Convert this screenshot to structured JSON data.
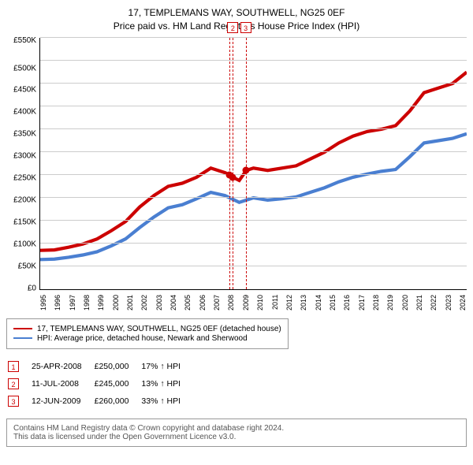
{
  "title": {
    "address": "17, TEMPLEMANS WAY, SOUTHWELL, NG25 0EF",
    "subtitle": "Price paid vs. HM Land Registry's House Price Index (HPI)"
  },
  "chart": {
    "type": "line",
    "background_color": "#ffffff",
    "grid_color": "#cccccc",
    "axis_color": "#000000",
    "ylim": [
      0,
      550
    ],
    "ytick_step": 50,
    "yunit_prefix": "£",
    "yunit_suffix": "K",
    "yticks": [
      "£0",
      "£50K",
      "£100K",
      "£150K",
      "£200K",
      "£250K",
      "£300K",
      "£350K",
      "£400K",
      "£450K",
      "£500K",
      "£550K"
    ],
    "xlim": [
      1995,
      2025
    ],
    "xticks": [
      "1995",
      "1996",
      "1997",
      "1998",
      "1999",
      "2000",
      "2001",
      "2002",
      "2003",
      "2004",
      "2005",
      "2006",
      "2007",
      "2008",
      "2009",
      "2010",
      "2011",
      "2012",
      "2013",
      "2014",
      "2015",
      "2016",
      "2017",
      "2018",
      "2019",
      "2020",
      "2021",
      "2022",
      "2023",
      "2024"
    ],
    "line_width": 1.4,
    "series": [
      {
        "name": "subject",
        "label": "17, TEMPLEMANS WAY, SOUTHWELL, NG25 0EF (detached house)",
        "color": "#cc0000",
        "points": [
          [
            1995,
            85
          ],
          [
            1996,
            86
          ],
          [
            1997,
            92
          ],
          [
            1998,
            99
          ],
          [
            1999,
            110
          ],
          [
            2000,
            128
          ],
          [
            2001,
            148
          ],
          [
            2002,
            180
          ],
          [
            2003,
            205
          ],
          [
            2004,
            225
          ],
          [
            2005,
            232
          ],
          [
            2006,
            245
          ],
          [
            2007,
            265
          ],
          [
            2008,
            255
          ],
          [
            2008.35,
            250
          ],
          [
            2008.55,
            245
          ],
          [
            2009,
            238
          ],
          [
            2009.5,
            260
          ],
          [
            2010,
            265
          ],
          [
            2011,
            260
          ],
          [
            2012,
            265
          ],
          [
            2013,
            270
          ],
          [
            2014,
            285
          ],
          [
            2015,
            300
          ],
          [
            2016,
            320
          ],
          [
            2017,
            335
          ],
          [
            2018,
            345
          ],
          [
            2019,
            350
          ],
          [
            2020,
            358
          ],
          [
            2021,
            390
          ],
          [
            2022,
            430
          ],
          [
            2023,
            440
          ],
          [
            2024,
            450
          ],
          [
            2025,
            475
          ]
        ]
      },
      {
        "name": "hpi",
        "label": "HPI: Average price, detached house, Newark and Sherwood",
        "color": "#4a7fd1",
        "points": [
          [
            1995,
            65
          ],
          [
            1996,
            66
          ],
          [
            1997,
            70
          ],
          [
            1998,
            75
          ],
          [
            1999,
            82
          ],
          [
            2000,
            95
          ],
          [
            2001,
            110
          ],
          [
            2002,
            135
          ],
          [
            2003,
            158
          ],
          [
            2004,
            178
          ],
          [
            2005,
            185
          ],
          [
            2006,
            198
          ],
          [
            2007,
            212
          ],
          [
            2008,
            205
          ],
          [
            2009,
            190
          ],
          [
            2010,
            200
          ],
          [
            2011,
            195
          ],
          [
            2012,
            198
          ],
          [
            2013,
            202
          ],
          [
            2014,
            212
          ],
          [
            2015,
            222
          ],
          [
            2016,
            235
          ],
          [
            2017,
            245
          ],
          [
            2018,
            252
          ],
          [
            2019,
            258
          ],
          [
            2020,
            262
          ],
          [
            2021,
            290
          ],
          [
            2022,
            320
          ],
          [
            2023,
            325
          ],
          [
            2024,
            330
          ],
          [
            2025,
            340
          ]
        ]
      }
    ],
    "sale_markers": [
      {
        "id": "1",
        "x": 2008.3,
        "y": 250,
        "above_chart": false
      },
      {
        "id": "2",
        "x": 2008.55,
        "y": 245,
        "above_chart": true
      },
      {
        "id": "3",
        "x": 2009.45,
        "y": 260,
        "above_chart": true
      }
    ],
    "marker_fill": "#cc0000",
    "marker_box_border": "#cc0000",
    "vline_color": "#cc0000",
    "vline_dash": "2,3"
  },
  "legend": {
    "border_color": "#999999",
    "font_size": 10
  },
  "sales": {
    "color": "#cc0000",
    "rows": [
      {
        "id": "1",
        "date": "25-APR-2008",
        "price": "£250,000",
        "delta": "17% ↑ HPI"
      },
      {
        "id": "2",
        "date": "11-JUL-2008",
        "price": "£245,000",
        "delta": "13% ↑ HPI"
      },
      {
        "id": "3",
        "date": "12-JUN-2009",
        "price": "£260,000",
        "delta": "33% ↑ HPI"
      }
    ]
  },
  "footer": {
    "line1": "Contains HM Land Registry data © Crown copyright and database right 2024.",
    "line2": "This data is licensed under the Open Government Licence v3.0."
  }
}
